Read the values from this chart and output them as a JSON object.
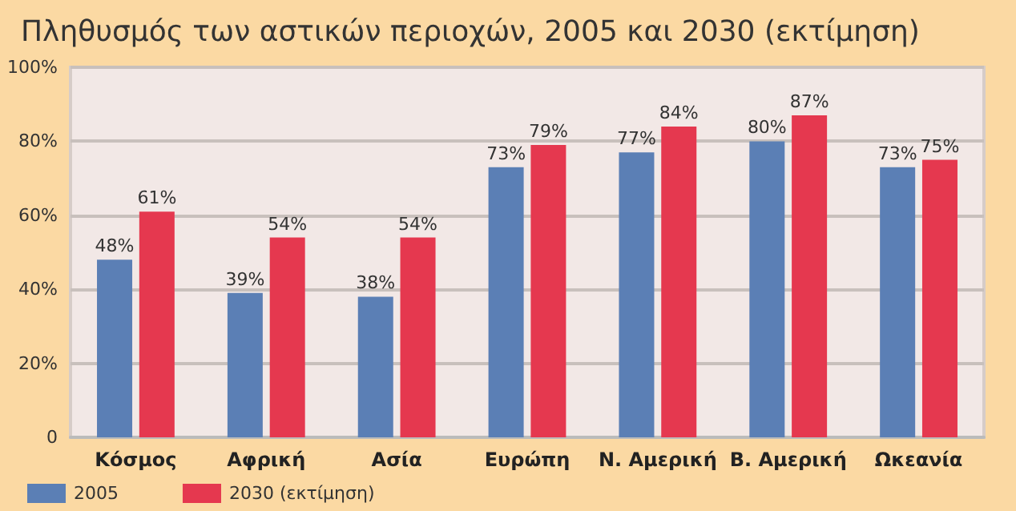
{
  "chart_data": {
    "type": "bar",
    "title": "Πληθυσμός των αστικών περιοχών, 2005 και 2030 (εκτίμηση)",
    "categories": [
      "Κόσμος",
      "Αφρική",
      "Ασία",
      "Ευρώπη",
      "Ν. Αμερική",
      "Β. Αμερική",
      "Ωκεανία"
    ],
    "series": [
      {
        "name": "2005",
        "color": "#5b7fb5",
        "values": [
          48,
          39,
          38,
          73,
          77,
          80,
          73
        ],
        "value_labels": [
          "48%",
          "39%",
          "38%",
          "73%",
          "77%",
          "80%",
          "73%"
        ]
      },
      {
        "name": "2030 (εκτίμηση)",
        "color": "#e5384f",
        "values": [
          61,
          54,
          54,
          79,
          84,
          87,
          75
        ],
        "value_labels": [
          "61%",
          "54%",
          "54%",
          "79%",
          "84%",
          "87%",
          "75%"
        ]
      }
    ],
    "ylim": [
      0,
      100
    ],
    "yticks": [
      {
        "value": 0,
        "label": "0"
      },
      {
        "value": 20,
        "label": "20%"
      },
      {
        "value": 40,
        "label": "40%"
      },
      {
        "value": 60,
        "label": "60%"
      },
      {
        "value": 80,
        "label": "80%"
      },
      {
        "value": 100,
        "label": "100%"
      }
    ],
    "grid": "y",
    "legend": "bottom left"
  }
}
